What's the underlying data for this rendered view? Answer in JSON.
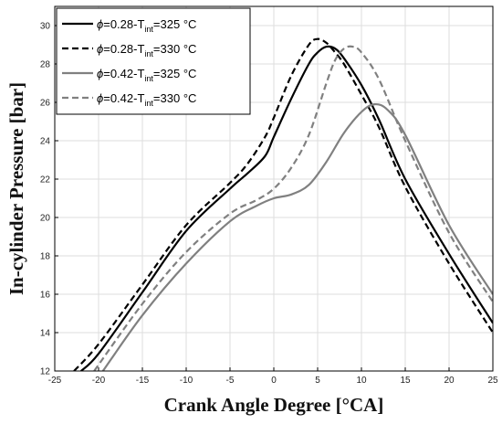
{
  "chart_data": {
    "type": "line",
    "title": "",
    "xlabel": "Crank Angle Degree [°CA]",
    "ylabel": "In-cylinder Pressure [bar]",
    "xlim": [
      -25,
      25
    ],
    "ylim": [
      12,
      31
    ],
    "xticks": [
      -25,
      -20,
      -15,
      -10,
      -5,
      0,
      5,
      10,
      15,
      20,
      25
    ],
    "yticks": [
      12,
      14,
      16,
      18,
      20,
      22,
      24,
      26,
      28,
      30
    ],
    "grid": true,
    "legend_position": "top-left",
    "series": [
      {
        "name": "ϕ=0.28-Tint=325 °C",
        "legend": {
          "symbol": "ϕ",
          "main": "=0.28-T",
          "sub": "int",
          "rest": "=325 °C"
        },
        "color": "#000000",
        "dash": "solid",
        "x": [
          -22,
          -20,
          -15,
          -10,
          -5,
          -3,
          -1,
          0,
          2,
          4,
          5,
          6,
          7,
          8,
          10,
          12,
          15,
          20,
          25
        ],
        "y": [
          12,
          12.9,
          16.1,
          19.3,
          21.5,
          22.3,
          23.2,
          24.2,
          26.2,
          28,
          28.6,
          28.9,
          28.8,
          28.3,
          26.9,
          25.1,
          22.0,
          18.1,
          14.5
        ]
      },
      {
        "name": "ϕ=0.28-Tint=330 °C",
        "legend": {
          "symbol": "ϕ",
          "main": "=0.28-T",
          "sub": "int",
          "rest": "=330 °C"
        },
        "color": "#000000",
        "dash": "dashed",
        "x": [
          -22.8,
          -20,
          -15,
          -10,
          -5,
          -3,
          -1,
          0,
          2,
          4,
          5,
          6,
          7,
          8,
          10,
          12,
          15,
          20,
          25
        ],
        "y": [
          12,
          13.4,
          16.5,
          19.6,
          21.8,
          22.8,
          24.2,
          25.2,
          27.4,
          29,
          29.3,
          29.1,
          28.6,
          28.0,
          26.4,
          24.7,
          21.6,
          17.6,
          14.0
        ]
      },
      {
        "name": "ϕ=0.42-Tint=325 °C",
        "legend": {
          "symbol": "ϕ",
          "main": "=0.42-T",
          "sub": "int",
          "rest": "=325 °C"
        },
        "color": "#808080",
        "dash": "solid",
        "x": [
          -19.5,
          -15,
          -10,
          -5,
          -2,
          0,
          2,
          4,
          6,
          8,
          10,
          11.5,
          13,
          15,
          20,
          25
        ],
        "y": [
          12,
          14.9,
          17.6,
          19.8,
          20.6,
          21.0,
          21.2,
          21.7,
          22.9,
          24.4,
          25.5,
          25.9,
          25.6,
          24.3,
          19.6,
          16.0
        ]
      },
      {
        "name": "ϕ=0.42-Tint=330 °C",
        "legend": {
          "symbol": "ϕ",
          "main": "=0.42-T",
          "sub": "int",
          "rest": "=330 °C"
        },
        "color": "#808080",
        "dash": "dashed",
        "x": [
          -20.5,
          -15,
          -10,
          -5,
          -2,
          0,
          2,
          4,
          6,
          7,
          8,
          9,
          10,
          12,
          15,
          20,
          25
        ],
        "y": [
          12,
          15.5,
          18.2,
          20.2,
          20.9,
          21.5,
          22.6,
          24.3,
          27.0,
          28.2,
          28.8,
          28.9,
          28.6,
          27.2,
          24.0,
          19.2,
          15.6
        ]
      }
    ]
  }
}
